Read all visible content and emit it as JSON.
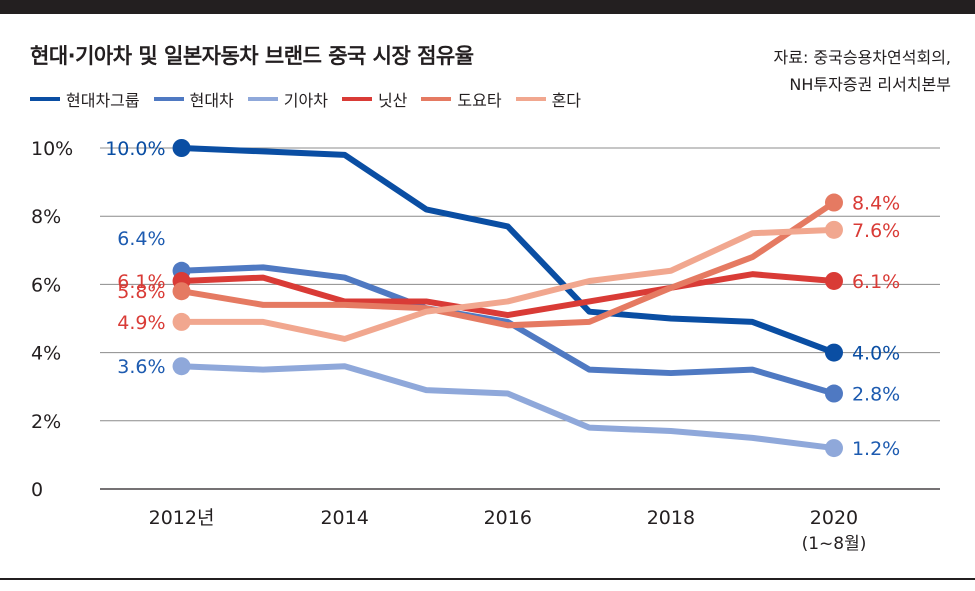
{
  "title": "현대·기아차 및 일본자동차 브랜드 중국 시장 점유율",
  "source": [
    "자료: 중국승용차연석회의,",
    "NH투자증권 리서치본부"
  ],
  "colors": {
    "hyundai_group": "#0a4ea3",
    "hyundai": "#4f79c2",
    "kia": "#8fa8da",
    "nissan": "#d93b36",
    "toyota": "#e57a62",
    "honda": "#f1a78f"
  },
  "chart_data": {
    "type": "line",
    "title": "현대·기아차 및 일본자동차 브랜드 중국 시장 점유율",
    "xlabel": "",
    "ylabel": "",
    "x": [
      2012,
      2013,
      2014,
      2015,
      2016,
      2017,
      2018,
      2019,
      2020
    ],
    "x_tick_values": [
      2012,
      2014,
      2016,
      2018,
      2020
    ],
    "x_tick_labels": [
      "2012년",
      "2014",
      "2016",
      "2018",
      "2020"
    ],
    "x_tick_sublabels": [
      "",
      "",
      "",
      "",
      "(1~8월)"
    ],
    "ylim": [
      0,
      10
    ],
    "y_ticks": [
      0,
      2,
      4,
      6,
      8,
      10
    ],
    "y_tick_labels": [
      "0",
      "2%",
      "4%",
      "6%",
      "8%",
      "10%"
    ],
    "grid": true,
    "legend_position": "top-left",
    "series": [
      {
        "name": "현대차그룹",
        "color_key": "hyundai_group",
        "values": [
          10.0,
          9.9,
          9.8,
          8.2,
          7.7,
          5.2,
          5.0,
          4.9,
          4.0
        ],
        "start_label": "10.0%",
        "end_label": "4.0%"
      },
      {
        "name": "현대차",
        "color_key": "hyundai",
        "values": [
          6.4,
          6.5,
          6.2,
          5.3,
          4.9,
          3.5,
          3.4,
          3.5,
          2.8
        ],
        "start_label": "6.4%",
        "end_label": "2.8%"
      },
      {
        "name": "기아차",
        "color_key": "kia",
        "values": [
          3.6,
          3.5,
          3.6,
          2.9,
          2.8,
          1.8,
          1.7,
          1.5,
          1.2
        ],
        "start_label": "3.6%",
        "end_label": "1.2%"
      },
      {
        "name": "닛산",
        "color_key": "nissan",
        "values": [
          6.1,
          6.2,
          5.5,
          5.5,
          5.1,
          5.5,
          5.9,
          6.3,
          6.1
        ],
        "start_label": "6.1%",
        "end_label": "6.1%"
      },
      {
        "name": "도요타",
        "color_key": "toyota",
        "values": [
          5.8,
          5.4,
          5.4,
          5.3,
          4.8,
          4.9,
          5.9,
          6.8,
          8.4
        ],
        "start_label": "5.8%",
        "end_label": "8.4%"
      },
      {
        "name": "혼다",
        "color_key": "honda",
        "values": [
          4.9,
          4.9,
          4.4,
          5.2,
          5.5,
          6.1,
          6.4,
          7.5,
          7.6
        ],
        "start_label": "4.9%",
        "end_label": "7.6%"
      }
    ]
  }
}
